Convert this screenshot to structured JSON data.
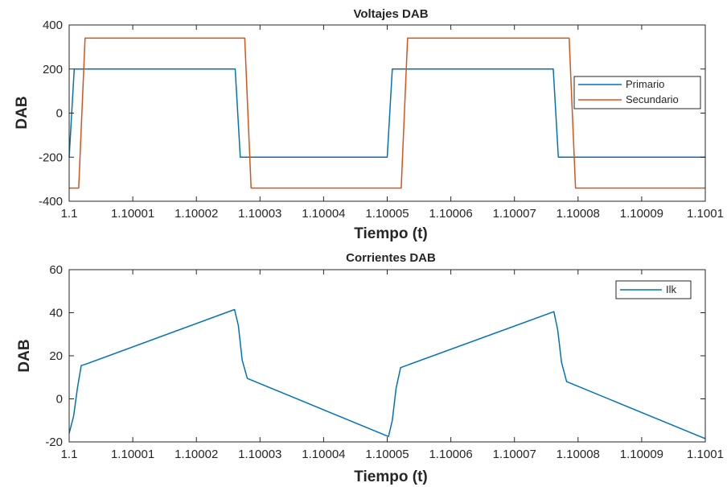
{
  "chart_data": [
    {
      "type": "line",
      "title": "Voltajes DAB",
      "xlabel": "Tiempo (t)",
      "ylabel": "DAB",
      "xlim": [
        1.1,
        1.1001
      ],
      "ylim": [
        -400,
        400
      ],
      "xticks": [
        1.1,
        1.10001,
        1.10002,
        1.10003,
        1.10004,
        1.10005,
        1.10006,
        1.10007,
        1.10008,
        1.10009,
        1.1001
      ],
      "xtick_labels": [
        "1.1",
        "1.10001",
        "1.10002",
        "1.10003",
        "1.10004",
        "1.10005",
        "1.10006",
        "1.10007",
        "1.10008",
        "1.10009",
        "1.1001"
      ],
      "yticks": [
        -400,
        -200,
        0,
        200,
        400
      ],
      "ytick_labels": [
        "-400",
        "-200",
        "0",
        "200",
        "400"
      ],
      "grid": false,
      "legend_position": "right",
      "series": [
        {
          "name": "Primario",
          "color": "#0072BD",
          "x": [
            1.1,
            1.1000008,
            1.1000261,
            1.1000269,
            1.10005,
            1.1000508,
            1.1000761,
            1.1000769,
            1.1001
          ],
          "y": [
            -200,
            200,
            200,
            -200,
            -200,
            200,
            200,
            -200,
            -200
          ]
        },
        {
          "name": "Secundario",
          "color": "#D95319",
          "x": [
            1.1,
            1.1000015,
            1.1000025,
            1.1000276,
            1.1000286,
            1.1000522,
            1.1000532,
            1.1000786,
            1.1000796,
            1.1001
          ],
          "y": [
            -340,
            -340,
            340,
            340,
            -340,
            -340,
            340,
            340,
            -340,
            -340
          ]
        }
      ]
    },
    {
      "type": "line",
      "title": "Corrientes DAB",
      "xlabel": "Tiempo (t)",
      "ylabel": "DAB",
      "xlim": [
        1.1,
        1.1001
      ],
      "ylim": [
        -20,
        60
      ],
      "xticks": [
        1.1,
        1.10001,
        1.10002,
        1.10003,
        1.10004,
        1.10005,
        1.10006,
        1.10007,
        1.10008,
        1.10009,
        1.1001
      ],
      "xtick_labels": [
        "1.1",
        "1.10001",
        "1.10002",
        "1.10003",
        "1.10004",
        "1.10005",
        "1.10006",
        "1.10007",
        "1.10008",
        "1.10009",
        "1.1001"
      ],
      "yticks": [
        -20,
        0,
        20,
        40,
        60
      ],
      "ytick_labels": [
        "-20",
        "0",
        "20",
        "40",
        "60"
      ],
      "grid": false,
      "legend_position": "top-right",
      "series": [
        {
          "name": "Ilk",
          "color": "#0072BD",
          "x": [
            1.1,
            1.1000007,
            1.1000013,
            1.1000019,
            1.1000025,
            1.100026,
            1.1000266,
            1.1000272,
            1.100028,
            1.1000502,
            1.1000508,
            1.1000514,
            1.1000521,
            1.1000762,
            1.1000768,
            1.1000774,
            1.1000782,
            1.1001
          ],
          "y": [
            -16,
            -8,
            5,
            15.5,
            16,
            41.5,
            34,
            18,
            9.5,
            -17.5,
            -10,
            5,
            14.5,
            40.5,
            32,
            17,
            8,
            -18.5
          ]
        }
      ]
    }
  ]
}
